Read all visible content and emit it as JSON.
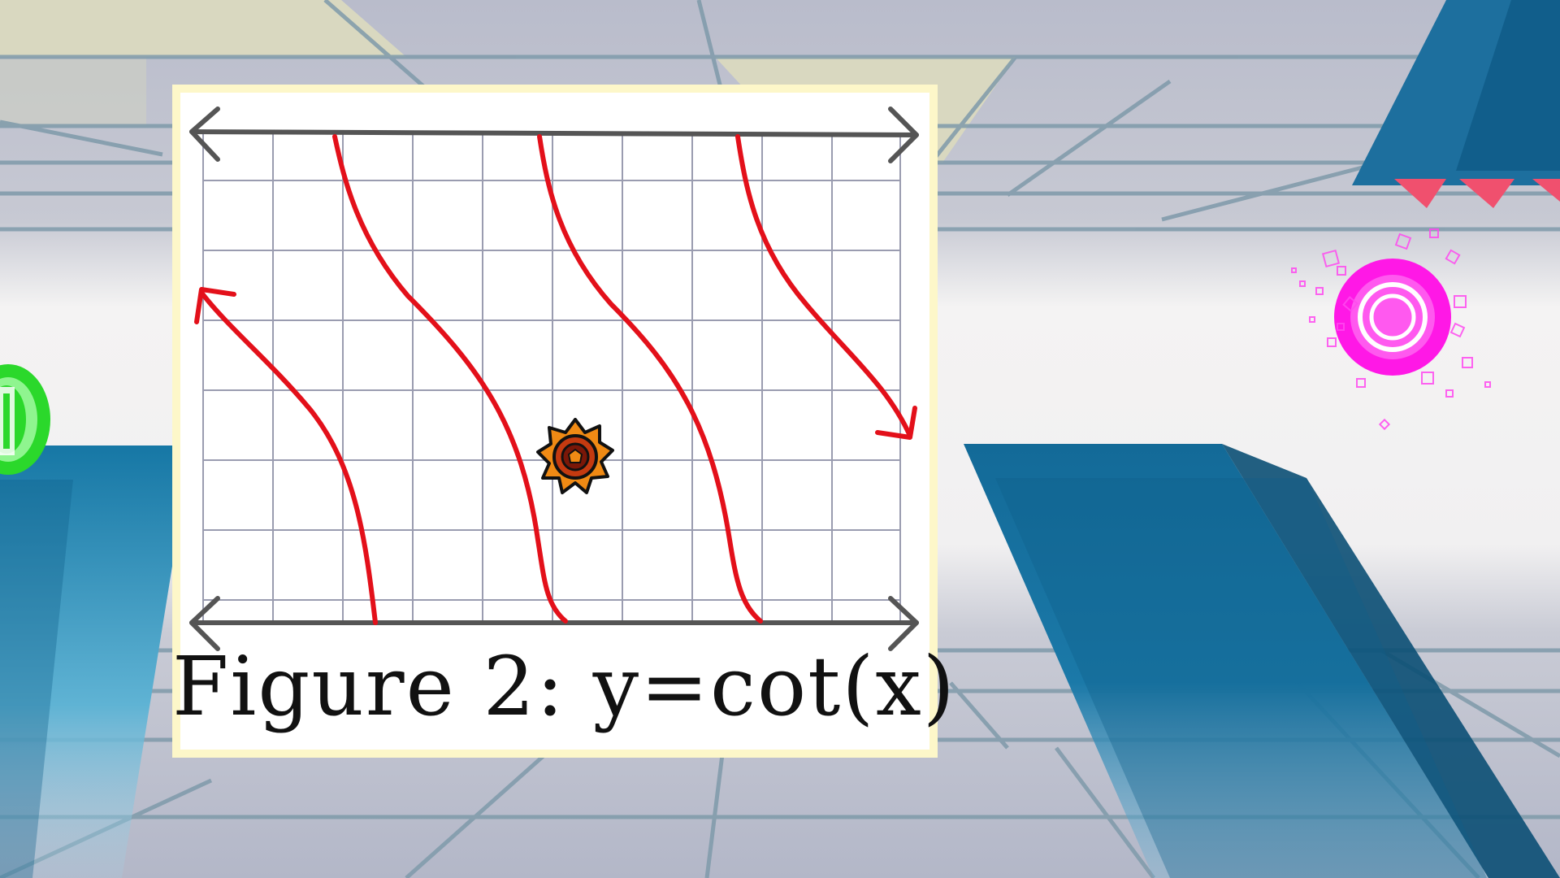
{
  "level": {
    "figure_caption": "Figure 2: y=cot(x)"
  },
  "icons": {
    "player": "sawblade-player-icon",
    "orb": "pink-jump-orb-icon",
    "portal": "green-gravity-portal-icon"
  },
  "colors": {
    "background_sky": "#b9bccb",
    "horizon_glow": "#f4f3f3",
    "ceiling_tan": "#d9d8c0",
    "grid_lines": "#7f9aaa",
    "platform_blue": "#1a6f9c",
    "platform_blue_dark": "#0d5a82",
    "card_border": "#fdf7c9",
    "graph_grid": "#9a9cb0",
    "axis_gray": "#555555",
    "curve_red": "#e3101a",
    "orb_pink": "#ff18e6",
    "portal_green": "#2bd82b",
    "spike_red": "#f0506e",
    "player_orange": "#f08a14"
  }
}
